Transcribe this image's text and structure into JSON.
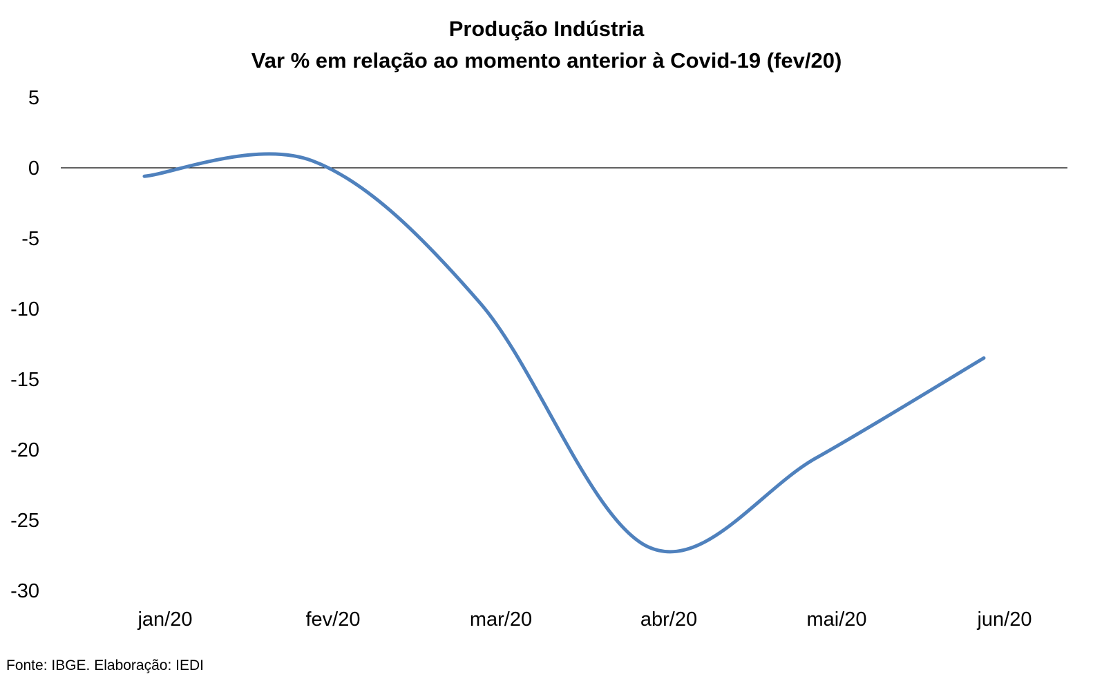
{
  "chart_data": {
    "type": "line",
    "title": "Produção Indústria",
    "subtitle": "Var % em relação ao momento anterior à Covid-19 (fev/20)",
    "categories": [
      "jan/20",
      "fev/20",
      "mar/20",
      "abr/20",
      "mai/20",
      "jun/20"
    ],
    "series": [
      {
        "values": [
          -0.6,
          0.5,
          -9.6,
          -26.9,
          -20.6,
          -13.5
        ]
      }
    ],
    "ylim": [
      -30,
      5
    ],
    "yticks": [
      5,
      0,
      -5,
      -10,
      -15,
      -20,
      -25,
      -30
    ],
    "ytick_labels": [
      "5",
      "0",
      "-5",
      "-10",
      "-15",
      "-20",
      "-25",
      "-30"
    ],
    "grid": false,
    "smooth": true,
    "zero_line": true,
    "line_color": "#4f81bd",
    "source": "Fonte: IBGE. Elaboração: IEDI"
  }
}
